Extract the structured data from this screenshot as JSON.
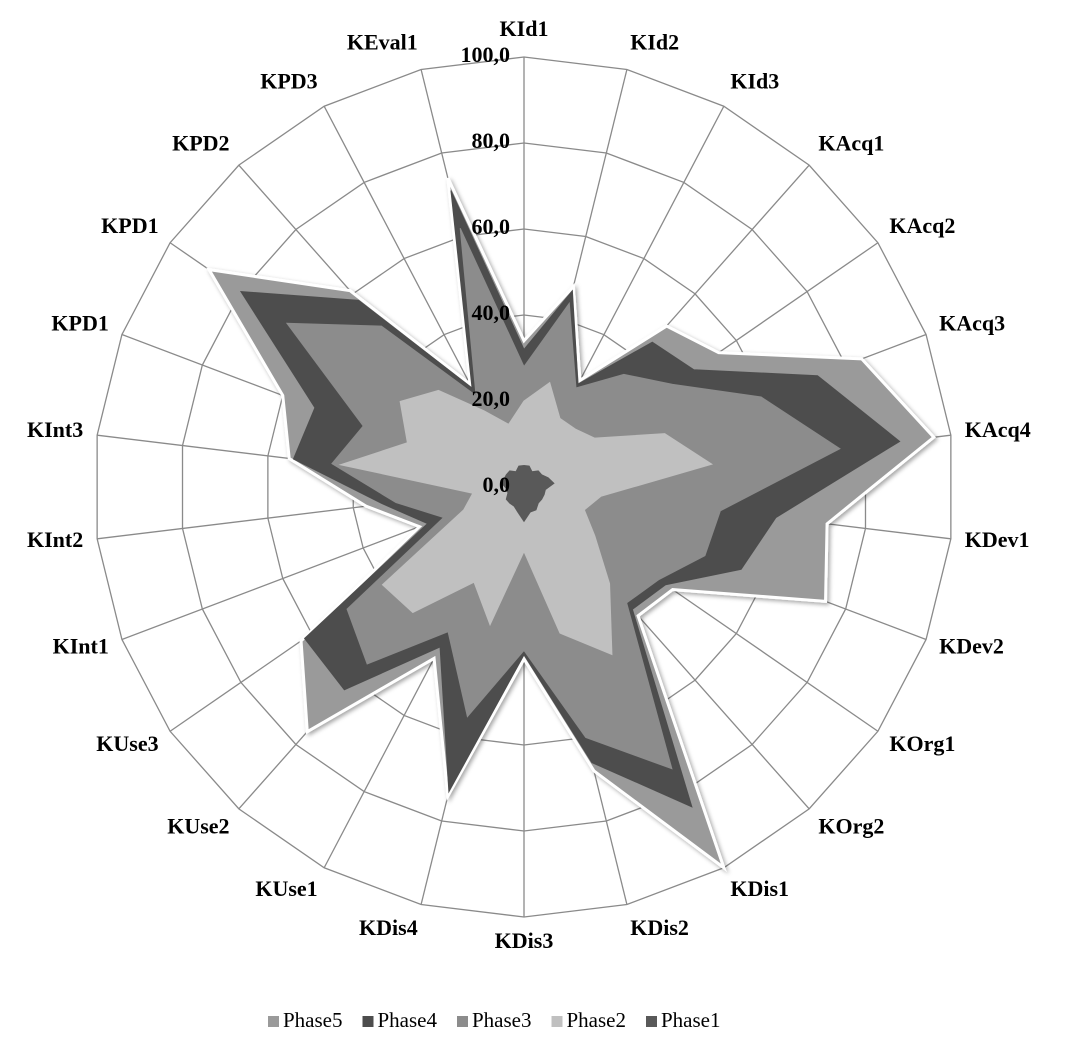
{
  "chart_data": {
    "type": "radar",
    "categories": [
      "KId1",
      "KId2",
      "KId3",
      "KAcq1",
      "KAcq2",
      "KAcq3",
      "KAcq4",
      "KDev1",
      "KDev2",
      "KOrg1",
      "KOrg2",
      "KDis1",
      "KDis2",
      "KDis3",
      "KDis4",
      "KUse1",
      "KUse2",
      "KUse3",
      "KInt1",
      "KInt2",
      "KInt3",
      "KPD1",
      "KPD1",
      "KPD2",
      "KPD3",
      "KEval1"
    ],
    "series": [
      {
        "name": "Phase5",
        "color": "#9a9a9a",
        "values": [
          34,
          48,
          28,
          50,
          55,
          84,
          96,
          71,
          75,
          42,
          40,
          100,
          68,
          40,
          74,
          45,
          76,
          63,
          26,
          37,
          55,
          60,
          89,
          61,
          27,
          74
        ]
      },
      {
        "name": "Phase4",
        "color": "#4d4d4d",
        "values": [
          32,
          47,
          27,
          45,
          48,
          73,
          88,
          59,
          54,
          40,
          38,
          84,
          66,
          39,
          73,
          42,
          63,
          62,
          24,
          33,
          54,
          52,
          80,
          58,
          26,
          71
        ]
      },
      {
        "name": "Phase3",
        "color": "#8c8c8c",
        "values": [
          28,
          44,
          26,
          35,
          42,
          59,
          74,
          46,
          45,
          38,
          36,
          74,
          60,
          38,
          55,
          38,
          55,
          50,
          20,
          30,
          45,
          40,
          67,
          50,
          24,
          62
        ]
      },
      {
        "name": "Phase2",
        "color": "#c0c0c0",
        "values": [
          20,
          25,
          18,
          18,
          20,
          35,
          44,
          18,
          15,
          20,
          30,
          44,
          35,
          15,
          33,
          25,
          39,
          40,
          15,
          12,
          43,
          29,
          35,
          30,
          20,
          15
        ]
      },
      {
        "name": "Phase1",
        "color": "#595959",
        "values": [
          5,
          5,
          4,
          5,
          5,
          6,
          7,
          5,
          5,
          5,
          5,
          6,
          6,
          8,
          6,
          5,
          5,
          5,
          4,
          4,
          5,
          5,
          5,
          5,
          4,
          5
        ]
      }
    ],
    "rlim": [
      0,
      100
    ],
    "rticks": [
      {
        "value": 0,
        "label": "0,0"
      },
      {
        "value": 20,
        "label": "20,0"
      },
      {
        "value": 40,
        "label": "40,0"
      },
      {
        "value": 60,
        "label": "60,0"
      },
      {
        "value": 80,
        "label": "80,0"
      },
      {
        "value": 100,
        "label": "100,0"
      }
    ],
    "grid": true,
    "legend": "bottom"
  }
}
